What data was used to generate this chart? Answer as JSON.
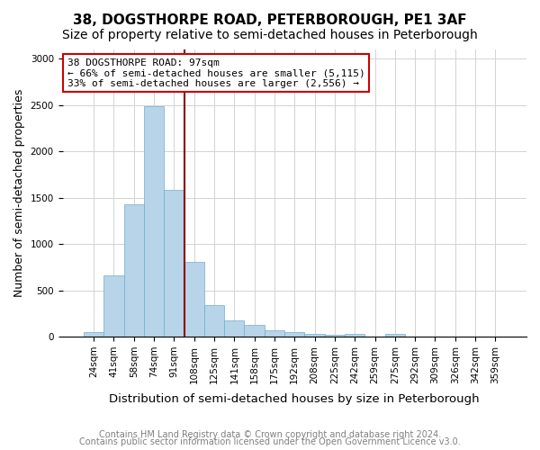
{
  "title": "38, DOGSTHORPE ROAD, PETERBOROUGH, PE1 3AF",
  "subtitle": "Size of property relative to semi-detached houses in Peterborough",
  "xlabel": "Distribution of semi-detached houses by size in Peterborough",
  "ylabel": "Number of semi-detached properties",
  "categories": [
    "24sqm",
    "41sqm",
    "58sqm",
    "74sqm",
    "91sqm",
    "108sqm",
    "125sqm",
    "141sqm",
    "158sqm",
    "175sqm",
    "192sqm",
    "208sqm",
    "225sqm",
    "242sqm",
    "259sqm",
    "275sqm",
    "292sqm",
    "309sqm",
    "326sqm",
    "342sqm",
    "359sqm"
  ],
  "values": [
    50,
    660,
    1430,
    2490,
    1580,
    810,
    345,
    175,
    130,
    65,
    45,
    25,
    15,
    25,
    0,
    30,
    0,
    0,
    0,
    0,
    0
  ],
  "bar_color": "#b8d4e8",
  "bar_edge_color": "#6baed6",
  "vline_x_index": 4.5,
  "vline_color": "#8b0000",
  "annotation_title": "38 DOGSTHORPE ROAD: 97sqm",
  "annotation_line1": "← 66% of semi-detached houses are smaller (5,115)",
  "annotation_line2": "33% of semi-detached houses are larger (2,556) →",
  "annotation_box_color": "#ffffff",
  "annotation_box_edge": "#cc0000",
  "footnote1": "Contains HM Land Registry data © Crown copyright and database right 2024.",
  "footnote2": "Contains public sector information licensed under the Open Government Licence v3.0.",
  "ylim": [
    0,
    3100
  ],
  "yticks": [
    0,
    500,
    1000,
    1500,
    2000,
    2500,
    3000
  ],
  "title_fontsize": 11,
  "subtitle_fontsize": 10,
  "xlabel_fontsize": 9.5,
  "ylabel_fontsize": 9,
  "tick_fontsize": 7.5,
  "footnote_fontsize": 7,
  "annotation_fontsize": 8
}
